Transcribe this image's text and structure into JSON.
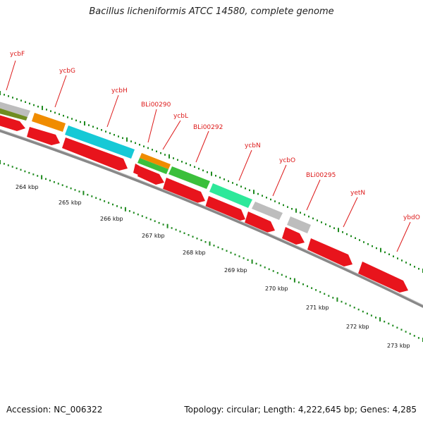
{
  "title": "Bacillus licheniformis ATCC 14580, complete genome",
  "footer": {
    "accession": "Accession: NC_006322",
    "summary": "Topology: circular; Length: 4,222,645 bp; Genes: 4,285"
  },
  "scale_labels": [
    "264 kbp",
    "265 kbp",
    "266 kbp",
    "267 kbp",
    "268 kbp",
    "269 kbp",
    "270 kbp",
    "271 kbp",
    "272 kbp",
    "273 kbp"
  ],
  "colors": {
    "backbone": "#888888",
    "gene_arrow": "#e8141c",
    "label": "#dd1a1a",
    "tick": "#1f8a1f",
    "cog_olive": "#6f8c22",
    "cog_gray": "#bdbdbd",
    "cog_orange": "#f08c00",
    "cog_cyan": "#16c9d6",
    "cog_green": "#3cbf3c",
    "cog_mint": "#2ee89a"
  },
  "gene_labels": [
    "ycbF",
    "ycbG",
    "ycbH",
    "BLi00290",
    "ycbL",
    "BLi00292",
    "ycbN",
    "ycbO",
    "BLi00295",
    "yetN",
    "ybdO"
  ]
}
